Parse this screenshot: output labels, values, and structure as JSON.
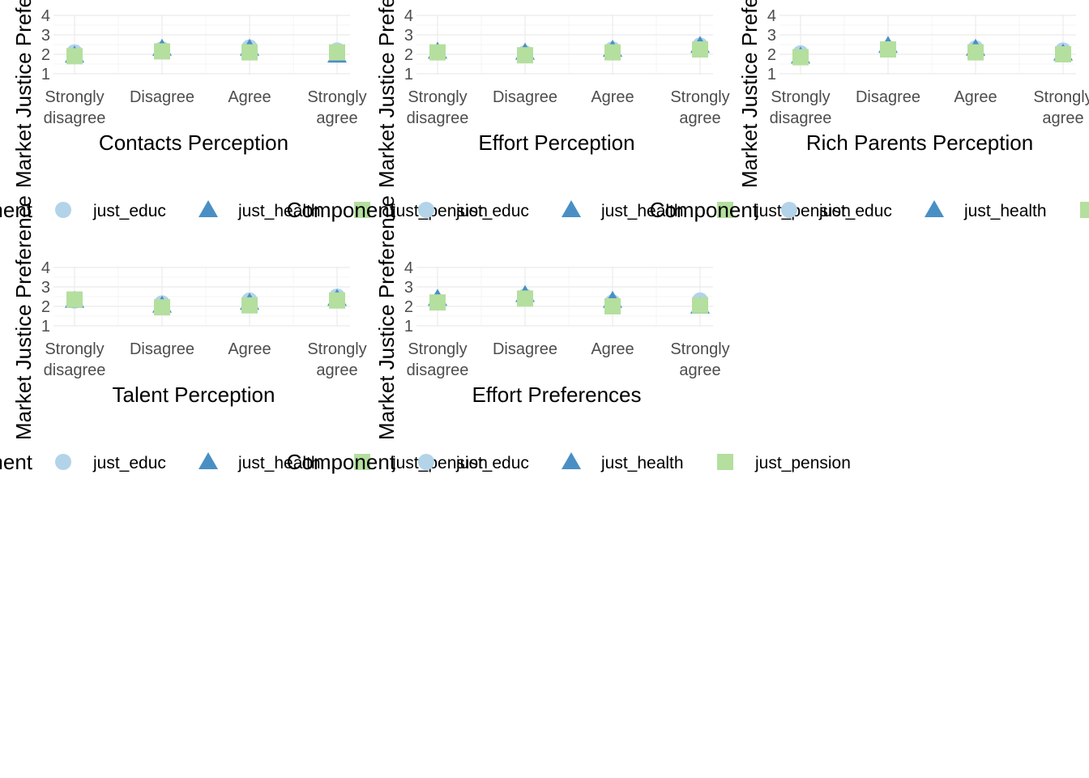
{
  "colors": {
    "just_educ": "#b3d3e9",
    "just_health": "#4a8fc4",
    "just_pension": "#b4df9e"
  },
  "shapes": {
    "just_educ": "circle",
    "just_health": "triangle",
    "just_pension": "square"
  },
  "chart_data": [
    {
      "type": "scatter",
      "xlabel": "Contacts Perception",
      "ylabel": "Market Justice Preference",
      "categories": [
        "Strongly disagree",
        "Disagree",
        "Agree",
        "Strongly agree"
      ],
      "ylim": [
        1,
        4
      ],
      "yticks": [
        1,
        2,
        3,
        4
      ],
      "grid": true,
      "legend": {
        "title": "Component",
        "position": "bottom",
        "entries": [
          "just_educ",
          "just_health",
          "just_pension"
        ]
      },
      "series": [
        {
          "name": "just_educ",
          "values": [
            2.1,
            2.25,
            2.35,
            2.2
          ]
        },
        {
          "name": "just_health",
          "values": [
            1.95,
            2.3,
            2.3,
            1.95
          ]
        },
        {
          "name": "just_pension",
          "values": [
            1.9,
            2.15,
            2.1,
            2.1
          ]
        }
      ]
    },
    {
      "type": "scatter",
      "xlabel": "Effort Perception",
      "ylabel": "Market Justice Preference",
      "categories": [
        "Strongly disagree",
        "Disagree",
        "Agree",
        "Strongly agree"
      ],
      "ylim": [
        1,
        4
      ],
      "yticks": [
        1,
        2,
        3,
        4
      ],
      "grid": true,
      "legend": {
        "title": "Component",
        "position": "bottom",
        "entries": [
          "just_educ",
          "just_health",
          "just_pension"
        ]
      },
      "series": [
        {
          "name": "just_educ",
          "values": [
            2.1,
            2.05,
            2.25,
            2.45
          ]
        },
        {
          "name": "just_health",
          "values": [
            2.15,
            2.1,
            2.25,
            2.45
          ]
        },
        {
          "name": "just_pension",
          "values": [
            2.1,
            1.95,
            2.1,
            2.25
          ]
        }
      ]
    },
    {
      "type": "scatter",
      "xlabel": "Rich Parents Perception",
      "ylabel": "Market Justice Preference",
      "categories": [
        "Strongly disagree",
        "Disagree",
        "Agree",
        "Strongly agree"
      ],
      "ylim": [
        1,
        4
      ],
      "yticks": [
        1,
        2,
        3,
        4
      ],
      "grid": true,
      "legend": {
        "title": "Component",
        "position": "bottom",
        "entries": [
          "just_educ",
          "just_health",
          "just_pension"
        ]
      },
      "series": [
        {
          "name": "just_educ",
          "values": [
            2.05,
            2.3,
            2.3,
            2.2
          ]
        },
        {
          "name": "just_health",
          "values": [
            1.9,
            2.45,
            2.3,
            2.05
          ]
        },
        {
          "name": "just_pension",
          "values": [
            1.85,
            2.25,
            2.1,
            2.0
          ]
        }
      ]
    },
    {
      "type": "scatter",
      "xlabel": "Talent Perception",
      "ylabel": "Market Justice Preference",
      "categories": [
        "Strongly disagree",
        "Disagree",
        "Agree",
        "Strongly agree"
      ],
      "ylim": [
        1,
        4
      ],
      "yticks": [
        1,
        2,
        3,
        4
      ],
      "grid": true,
      "legend": {
        "title": "Component",
        "position": "bottom",
        "entries": [
          "just_educ",
          "just_health",
          "just_pension"
        ]
      },
      "series": [
        {
          "name": "just_educ",
          "values": [
            2.3,
            2.15,
            2.3,
            2.5
          ]
        },
        {
          "name": "just_health",
          "values": [
            2.3,
            2.05,
            2.2,
            2.4
          ]
        },
        {
          "name": "just_pension",
          "values": [
            2.35,
            1.95,
            2.05,
            2.3
          ]
        }
      ]
    },
    {
      "type": "scatter",
      "xlabel": "Effort Preferences",
      "ylabel": "Market Justice Preference",
      "categories": [
        "Strongly disagree",
        "Disagree",
        "Agree",
        "Strongly agree"
      ],
      "ylim": [
        1,
        4
      ],
      "yticks": [
        1,
        2,
        3,
        4
      ],
      "grid": true,
      "legend": {
        "title": "Component",
        "position": "bottom",
        "entries": [
          "just_educ",
          "just_health",
          "just_pension"
        ]
      },
      "series": [
        {
          "name": "just_educ",
          "values": [
            2.25,
            2.5,
            2.2,
            2.3
          ]
        },
        {
          "name": "just_health",
          "values": [
            2.4,
            2.6,
            2.3,
            2.0
          ]
        },
        {
          "name": "just_pension",
          "values": [
            2.2,
            2.4,
            2.0,
            2.05
          ]
        }
      ]
    }
  ]
}
